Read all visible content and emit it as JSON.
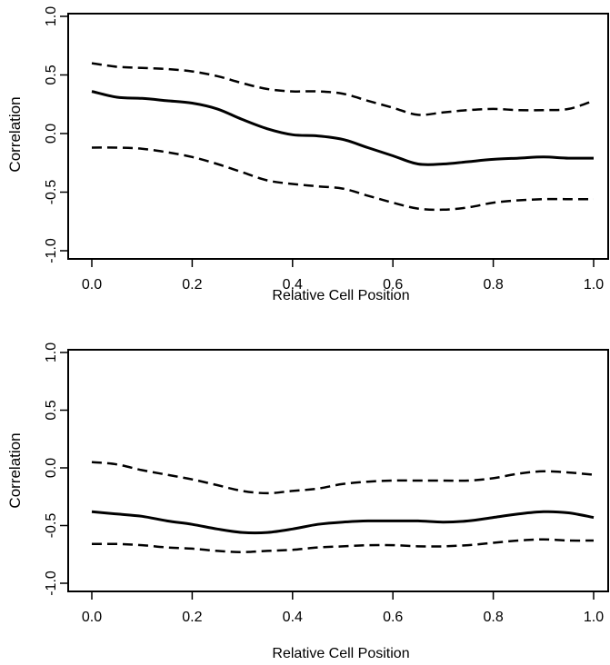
{
  "chart_data": [
    {
      "type": "line",
      "title": "",
      "xlabel": "Relative Cell Position",
      "ylabel": "Correlation",
      "xlim": [
        0.0,
        1.0
      ],
      "ylim": [
        -1.0,
        1.0
      ],
      "x_ticks": [
        "0.0",
        "0.2",
        "0.4",
        "0.6",
        "0.8",
        "1.0"
      ],
      "y_ticks": [
        "-1.0",
        "-0.5",
        "0.0",
        "0.5",
        "1.0"
      ],
      "grid": false,
      "x": [
        0.0,
        0.05,
        0.1,
        0.15,
        0.2,
        0.25,
        0.3,
        0.35,
        0.4,
        0.45,
        0.5,
        0.55,
        0.6,
        0.65,
        0.7,
        0.75,
        0.8,
        0.85,
        0.9,
        0.95,
        1.0
      ],
      "series": [
        {
          "style": "dashed",
          "values": [
            0.6,
            0.57,
            0.56,
            0.55,
            0.53,
            0.49,
            0.43,
            0.38,
            0.36,
            0.36,
            0.34,
            0.28,
            0.22,
            0.16,
            0.18,
            0.2,
            0.21,
            0.2,
            0.2,
            0.21,
            0.28
          ]
        },
        {
          "style": "solid",
          "values": [
            0.36,
            0.31,
            0.3,
            0.28,
            0.26,
            0.21,
            0.12,
            0.04,
            -0.01,
            -0.02,
            -0.05,
            -0.12,
            -0.19,
            -0.26,
            -0.26,
            -0.24,
            -0.22,
            -0.21,
            -0.2,
            -0.21,
            -0.21
          ]
        },
        {
          "style": "dashed",
          "values": [
            -0.12,
            -0.12,
            -0.13,
            -0.16,
            -0.2,
            -0.26,
            -0.33,
            -0.4,
            -0.43,
            -0.45,
            -0.47,
            -0.53,
            -0.59,
            -0.64,
            -0.65,
            -0.63,
            -0.59,
            -0.57,
            -0.56,
            -0.56,
            -0.56
          ]
        }
      ]
    },
    {
      "type": "line",
      "title": "",
      "xlabel": "Relative Cell Position",
      "ylabel": "Correlation",
      "xlim": [
        0.0,
        1.0
      ],
      "ylim": [
        -1.0,
        1.0
      ],
      "x_ticks": [
        "0.0",
        "0.2",
        "0.4",
        "0.6",
        "0.8",
        "1.0"
      ],
      "y_ticks": [
        "-1.0",
        "-0.5",
        "0.0",
        "0.5",
        "1.0"
      ],
      "grid": false,
      "x": [
        0.0,
        0.05,
        0.1,
        0.15,
        0.2,
        0.25,
        0.3,
        0.35,
        0.4,
        0.45,
        0.5,
        0.55,
        0.6,
        0.65,
        0.7,
        0.75,
        0.8,
        0.85,
        0.9,
        0.95,
        1.0
      ],
      "series": [
        {
          "style": "dashed",
          "values": [
            0.05,
            0.03,
            -0.02,
            -0.06,
            -0.1,
            -0.15,
            -0.2,
            -0.22,
            -0.2,
            -0.18,
            -0.14,
            -0.12,
            -0.11,
            -0.11,
            -0.11,
            -0.11,
            -0.09,
            -0.05,
            -0.03,
            -0.04,
            -0.06
          ]
        },
        {
          "style": "solid",
          "values": [
            -0.38,
            -0.4,
            -0.42,
            -0.46,
            -0.49,
            -0.53,
            -0.56,
            -0.56,
            -0.53,
            -0.49,
            -0.47,
            -0.46,
            -0.46,
            -0.46,
            -0.47,
            -0.46,
            -0.43,
            -0.4,
            -0.38,
            -0.39,
            -0.43
          ]
        },
        {
          "style": "dashed",
          "values": [
            -0.66,
            -0.66,
            -0.67,
            -0.69,
            -0.7,
            -0.72,
            -0.73,
            -0.72,
            -0.71,
            -0.69,
            -0.68,
            -0.67,
            -0.67,
            -0.68,
            -0.68,
            -0.67,
            -0.65,
            -0.63,
            -0.62,
            -0.63,
            -0.63
          ]
        }
      ]
    }
  ]
}
